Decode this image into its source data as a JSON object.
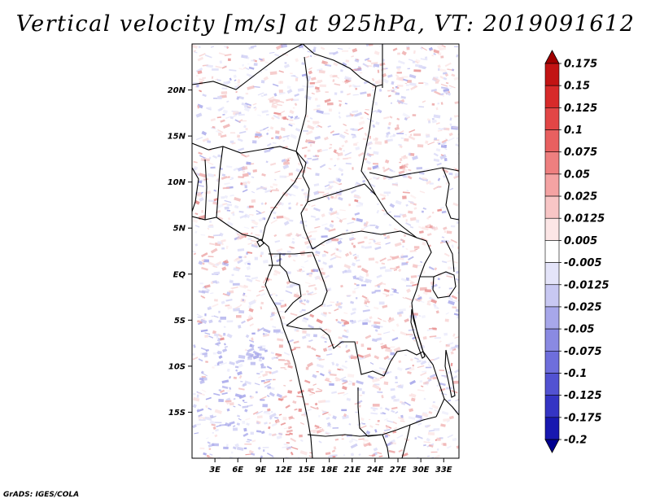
{
  "title": "Vertical velocity [m/s] at 925hPa, VT: 2019091612",
  "credit": "GrADS: IGES/COLA",
  "map": {
    "lon_range": [
      0,
      35
    ],
    "lat_range": [
      -20,
      25
    ],
    "lat_ticks": [
      {
        "value": 20,
        "label": "20N"
      },
      {
        "value": 15,
        "label": "15N"
      },
      {
        "value": 10,
        "label": "10N"
      },
      {
        "value": 5,
        "label": "5N"
      },
      {
        "value": 0,
        "label": "EQ"
      },
      {
        "value": -5,
        "label": "5S"
      },
      {
        "value": -10,
        "label": "10S"
      },
      {
        "value": -15,
        "label": "15S"
      }
    ],
    "lon_ticks": [
      {
        "value": 3,
        "label": "3E"
      },
      {
        "value": 6,
        "label": "6E"
      },
      {
        "value": 9,
        "label": "9E"
      },
      {
        "value": 12,
        "label": "12E"
      },
      {
        "value": 15,
        "label": "15E"
      },
      {
        "value": 18,
        "label": "18E"
      },
      {
        "value": 21,
        "label": "21E"
      },
      {
        "value": 24,
        "label": "24E"
      },
      {
        "value": 27,
        "label": "27E"
      },
      {
        "value": 30,
        "label": "30E"
      },
      {
        "value": 33,
        "label": "33E"
      }
    ],
    "field_description": "Noisy field of small-scale upward (red) and downward (blue) vertical velocity over Central Africa"
  },
  "colorbar": {
    "levels": [
      "0.175",
      "0.15",
      "0.125",
      "0.1",
      "0.075",
      "0.05",
      "0.025",
      "0.0125",
      "0.005",
      "-0.005",
      "-0.0125",
      "-0.025",
      "-0.05",
      "-0.075",
      "-0.1",
      "-0.125",
      "-0.175",
      "-0.2"
    ],
    "colors": [
      "#a00000",
      "#c21414",
      "#d72a2a",
      "#e24646",
      "#e86060",
      "#ee7f7f",
      "#f4a3a3",
      "#f8c6c6",
      "#fce6e6",
      "#ffffff",
      "#e4e4f9",
      "#c8c8f2",
      "#a7a7ea",
      "#8a8ae2",
      "#6e6edc",
      "#5252d2",
      "#3434c4",
      "#1818b0",
      "#000090"
    ]
  }
}
